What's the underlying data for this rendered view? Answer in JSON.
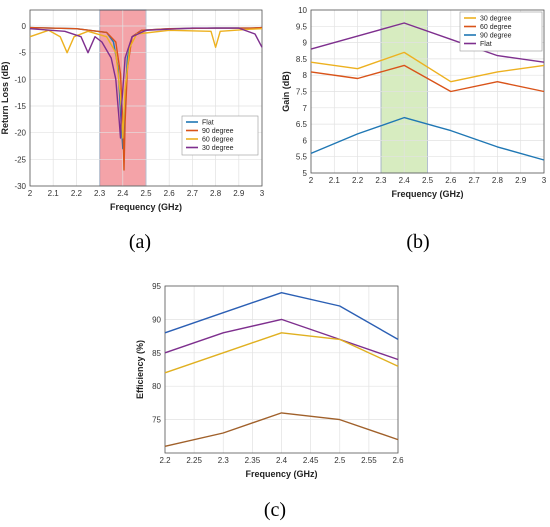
{
  "chart_data": [
    {
      "type": "line",
      "caption": "(a)",
      "xlabel": "Frequency (GHz)",
      "ylabel": "Return Loss (dB)",
      "xlim": [
        2,
        3
      ],
      "ylim": [
        -30,
        3
      ],
      "xticks": [
        "2",
        "2.1",
        "2.2",
        "2.3",
        "2.4",
        "2.5",
        "2.6",
        "2.7",
        "2.8",
        "2.9",
        "3"
      ],
      "yticks": [
        "0",
        "-5",
        "-10",
        "-15",
        "-20",
        "-25",
        "-30"
      ],
      "grid": true,
      "legend_position": "middle-right",
      "highlight": {
        "x_range": [
          2.3,
          2.5
        ],
        "color": "#f4a3a8"
      },
      "series": [
        {
          "name": "Flat",
          "color": "#1f77b4",
          "x": [
            2,
            2.2,
            2.33,
            2.36,
            2.38,
            2.39,
            2.4,
            2.41,
            2.42,
            2.44,
            2.48,
            2.6,
            2.8,
            2.95,
            3
          ],
          "y": [
            -0.3,
            -0.5,
            -1.2,
            -3,
            -8,
            -16,
            -23,
            -14,
            -6,
            -2,
            -0.8,
            -0.5,
            -0.4,
            -0.4,
            -0.3
          ]
        },
        {
          "name": "90 degree",
          "color": "#d95319",
          "x": [
            2,
            2.2,
            2.33,
            2.37,
            2.39,
            2.4,
            2.405,
            2.41,
            2.42,
            2.44,
            2.48,
            2.6,
            2.8,
            2.95,
            3
          ],
          "y": [
            -0.3,
            -0.5,
            -1.2,
            -3,
            -9,
            -18,
            -27,
            -18,
            -8,
            -2,
            -0.8,
            -0.5,
            -0.4,
            -0.4,
            -0.3
          ]
        },
        {
          "name": "60 degree",
          "color": "#edb120",
          "x": [
            2,
            2.08,
            2.13,
            2.16,
            2.19,
            2.25,
            2.33,
            2.37,
            2.39,
            2.4,
            2.41,
            2.43,
            2.46,
            2.6,
            2.78,
            2.8,
            2.82,
            2.95,
            3
          ],
          "y": [
            -2,
            -0.8,
            -2,
            -5,
            -2,
            -1,
            -2,
            -5,
            -13,
            -21,
            -12,
            -4,
            -1.5,
            -0.8,
            -1,
            -4,
            -1,
            -0.6,
            -0.5
          ]
        },
        {
          "name": "30 degree",
          "color": "#7e2f8e",
          "x": [
            2,
            2.15,
            2.22,
            2.25,
            2.28,
            2.31,
            2.35,
            2.37,
            2.385,
            2.39,
            2.395,
            2.41,
            2.44,
            2.5,
            2.7,
            2.9,
            2.97,
            3
          ],
          "y": [
            -0.5,
            -1,
            -2,
            -5,
            -2,
            -3,
            -6,
            -10,
            -18,
            -21,
            -15,
            -6,
            -2,
            -0.8,
            -0.4,
            -0.4,
            -1.5,
            -4
          ]
        }
      ]
    },
    {
      "type": "line",
      "caption": "(b)",
      "xlabel": "Frequency (GHz)",
      "ylabel": "Gain (dB)",
      "xlim": [
        2,
        3
      ],
      "ylim": [
        5,
        10
      ],
      "xticks": [
        "2",
        "2.1",
        "2.2",
        "2.3",
        "2.4",
        "2.5",
        "2.6",
        "2.7",
        "2.8",
        "2.9",
        "3"
      ],
      "yticks": [
        "10",
        "9.5",
        "9",
        "8.5",
        "8",
        "7.5",
        "7",
        "6.5",
        "6",
        "5.5",
        "5"
      ],
      "grid": true,
      "legend_position": "top-right",
      "highlight": {
        "x_range": [
          2.3,
          2.5
        ],
        "color": "#d7ecc0"
      },
      "series": [
        {
          "name": "30 degree",
          "color": "#edb120",
          "x": [
            2,
            2.2,
            2.4,
            2.6,
            2.8,
            3
          ],
          "y": [
            8.4,
            8.2,
            8.7,
            7.8,
            8.1,
            8.3
          ]
        },
        {
          "name": "60 degree",
          "color": "#d95319",
          "x": [
            2,
            2.2,
            2.4,
            2.6,
            2.8,
            3
          ],
          "y": [
            8.1,
            7.9,
            8.3,
            7.5,
            7.8,
            7.5
          ]
        },
        {
          "name": "90 degree",
          "color": "#1f77b4",
          "x": [
            2,
            2.2,
            2.4,
            2.6,
            2.8,
            3
          ],
          "y": [
            5.6,
            6.2,
            6.7,
            6.3,
            5.8,
            5.4
          ]
        },
        {
          "name": "Flat",
          "color": "#7e2f8e",
          "x": [
            2,
            2.2,
            2.4,
            2.6,
            2.8,
            3
          ],
          "y": [
            8.8,
            9.2,
            9.6,
            9.1,
            8.6,
            8.4
          ]
        }
      ]
    },
    {
      "type": "line",
      "caption": "(c)",
      "xlabel": "Frequency (GHz)",
      "ylabel": "Efficiency (%)",
      "xlim": [
        2.2,
        2.6
      ],
      "ylim": [
        70,
        95
      ],
      "xticks": [
        "2.2",
        "2.25",
        "2.3",
        "2.35",
        "2.4",
        "2.45",
        "2.5",
        "2.55",
        "2.6"
      ],
      "yticks": [
        "95",
        "90",
        "85",
        "80",
        "75"
      ],
      "grid": true,
      "series": [
        {
          "color": "#2b5fb4",
          "x": [
            2.2,
            2.3,
            2.4,
            2.5,
            2.6
          ],
          "y": [
            88,
            91,
            94,
            92,
            87
          ]
        },
        {
          "color": "#7e2f8e",
          "x": [
            2.2,
            2.3,
            2.4,
            2.5,
            2.6
          ],
          "y": [
            85,
            88,
            90,
            87,
            84
          ]
        },
        {
          "color": "#e0b020",
          "x": [
            2.2,
            2.3,
            2.4,
            2.5,
            2.6
          ],
          "y": [
            82,
            85,
            88,
            87,
            83
          ]
        },
        {
          "color": "#a0602a",
          "x": [
            2.2,
            2.3,
            2.4,
            2.5,
            2.6
          ],
          "y": [
            71,
            73,
            76,
            75,
            72
          ]
        }
      ]
    }
  ]
}
